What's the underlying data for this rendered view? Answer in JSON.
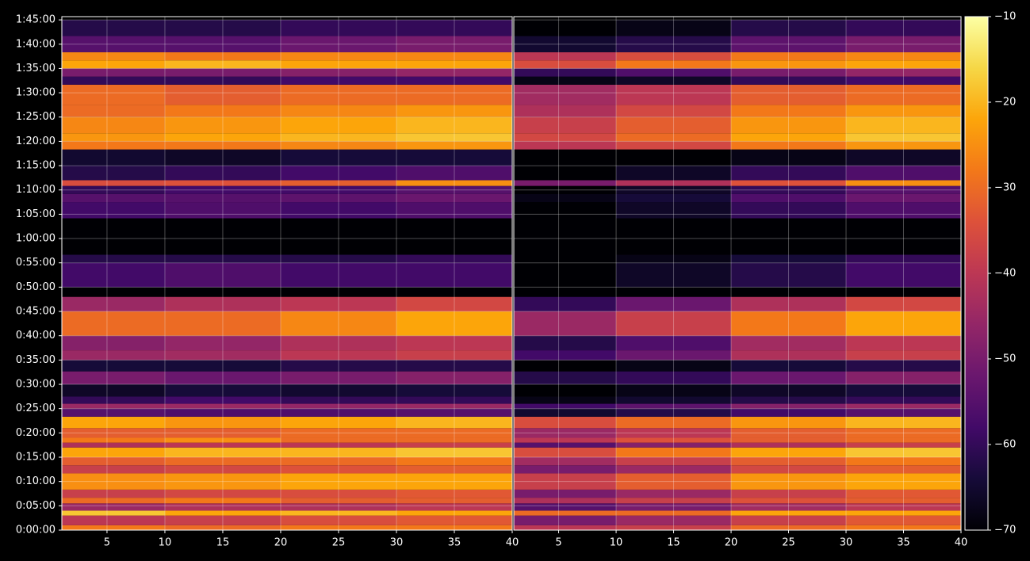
{
  "chart_data": {
    "type": "heatmap",
    "colormap": "inferno",
    "grid": true,
    "ylim": [
      0,
      6340
    ],
    "yticks": [
      {
        "value": 0,
        "label": "0:00:00"
      },
      {
        "value": 300,
        "label": "0:05:00"
      },
      {
        "value": 600,
        "label": "0:10:00"
      },
      {
        "value": 900,
        "label": "0:15:00"
      },
      {
        "value": 1200,
        "label": "0:20:00"
      },
      {
        "value": 1500,
        "label": "0:25:00"
      },
      {
        "value": 1800,
        "label": "0:30:00"
      },
      {
        "value": 2100,
        "label": "0:35:00"
      },
      {
        "value": 2400,
        "label": "0:40:00"
      },
      {
        "value": 2700,
        "label": "0:45:00"
      },
      {
        "value": 3000,
        "label": "0:50:00"
      },
      {
        "value": 3300,
        "label": "0:55:00"
      },
      {
        "value": 3600,
        "label": "1:00:00"
      },
      {
        "value": 3900,
        "label": "1:05:00"
      },
      {
        "value": 4200,
        "label": "1:10:00"
      },
      {
        "value": 4500,
        "label": "1:15:00"
      },
      {
        "value": 4800,
        "label": "1:20:00"
      },
      {
        "value": 5100,
        "label": "1:25:00"
      },
      {
        "value": 5400,
        "label": "1:30:00"
      },
      {
        "value": 5700,
        "label": "1:35:00"
      },
      {
        "value": 6000,
        "label": "1:40:00"
      },
      {
        "value": 6300,
        "label": "1:45:00"
      }
    ],
    "y_edges": [
      0,
      60,
      180,
      240,
      330,
      400,
      500,
      700,
      800,
      900,
      1020,
      1080,
      1140,
      1260,
      1400,
      1500,
      1560,
      1650,
      1800,
      1960,
      2100,
      2220,
      2400,
      2700,
      2880,
      3000,
      3300,
      3400,
      3850,
      4050,
      4150,
      4250,
      4320,
      4500,
      4700,
      4800,
      4900,
      5100,
      5250,
      5500,
      5600,
      5700,
      5800,
      5900,
      6100,
      6300
    ],
    "colorbar": {
      "lim": [
        -70,
        -10
      ],
      "ticks": [
        {
          "value": -10,
          "label": "−10"
        },
        {
          "value": -20,
          "label": "−20"
        },
        {
          "value": -30,
          "label": "−30"
        },
        {
          "value": -40,
          "label": "−40"
        },
        {
          "value": -50,
          "label": "−50"
        },
        {
          "value": -60,
          "label": "−60"
        },
        {
          "value": -70,
          "label": "−70"
        }
      ]
    },
    "panels": [
      {
        "xlim": [
          1.1,
          40
        ],
        "xticks": [
          5,
          10,
          15,
          20,
          25,
          30,
          35,
          40
        ],
        "x_edges": [
          1.1,
          10,
          20,
          30,
          40
        ],
        "z": [
          [
            -28,
            -30,
            -28,
            -28
          ],
          [
            -40,
            -38,
            -35,
            -33
          ],
          [
            -18,
            -22,
            -20,
            -22
          ],
          [
            -45,
            -42,
            -42,
            -40
          ],
          [
            -30,
            -28,
            -32,
            -32
          ],
          [
            -38,
            -36,
            -35,
            -33
          ],
          [
            -25,
            -24,
            -22,
            -22
          ],
          [
            -38,
            -36,
            -34,
            -32
          ],
          [
            -32,
            -30,
            -30,
            -28
          ],
          [
            -22,
            -20,
            -20,
            -18
          ],
          [
            -42,
            -40,
            -40,
            -38
          ],
          [
            -28,
            -25,
            -30,
            -30
          ],
          [
            -32,
            -32,
            -30,
            -30
          ],
          [
            -22,
            -24,
            -22,
            -20
          ],
          [
            -55,
            -56,
            -56,
            -55
          ],
          [
            -45,
            -45,
            -46,
            -45
          ],
          [
            -60,
            -58,
            -60,
            -60
          ],
          [
            -66,
            -64,
            -65,
            -64
          ],
          [
            -50,
            -52,
            -50,
            -48
          ],
          [
            -64,
            -64,
            -62,
            -62
          ],
          [
            -45,
            -44,
            -40,
            -38
          ],
          [
            -48,
            -46,
            -42,
            -40
          ],
          [
            -30,
            -30,
            -26,
            -22
          ],
          [
            -45,
            -42,
            -40,
            -36
          ],
          [
            -70,
            -70,
            -70,
            -70
          ],
          [
            -58,
            -56,
            -58,
            -58
          ],
          [
            -62,
            -62,
            -62,
            -60
          ],
          [
            -70,
            -70,
            -70,
            -70
          ],
          [
            -58,
            -56,
            -58,
            -56
          ],
          [
            -55,
            -55,
            -54,
            -52
          ],
          [
            -60,
            -58,
            -58,
            -55
          ],
          [
            -35,
            -34,
            -32,
            -25
          ],
          [
            -62,
            -60,
            -58,
            -56
          ],
          [
            -65,
            -66,
            -64,
            -64
          ],
          [
            -28,
            -28,
            -26,
            -24
          ],
          [
            -24,
            -22,
            -20,
            -18
          ],
          [
            -26,
            -24,
            -22,
            -20
          ],
          [
            -30,
            -28,
            -26,
            -24
          ],
          [
            -30,
            -32,
            -30,
            -30
          ],
          [
            -60,
            -60,
            -58,
            -58
          ],
          [
            -50,
            -50,
            -48,
            -46
          ],
          [
            -22,
            -20,
            -22,
            -22
          ],
          [
            -26,
            -28,
            -26,
            -26
          ],
          [
            -55,
            -55,
            -52,
            -50
          ],
          [
            -62,
            -62,
            -60,
            -60
          ]
        ]
      },
      {
        "xlim": [
          1.1,
          40
        ],
        "xticks": [
          5,
          10,
          15,
          20,
          25,
          30,
          35,
          40
        ],
        "x_edges": [
          1.1,
          10,
          20,
          30,
          40
        ],
        "z": [
          [
            -40,
            -38,
            -30,
            -28
          ],
          [
            -50,
            -45,
            -38,
            -33
          ],
          [
            -30,
            -30,
            -22,
            -22
          ],
          [
            -55,
            -50,
            -44,
            -40
          ],
          [
            -42,
            -38,
            -34,
            -32
          ],
          [
            -50,
            -45,
            -38,
            -33
          ],
          [
            -38,
            -32,
            -24,
            -22
          ],
          [
            -50,
            -45,
            -36,
            -32
          ],
          [
            -44,
            -38,
            -32,
            -28
          ],
          [
            -35,
            -28,
            -22,
            -18
          ],
          [
            -55,
            -48,
            -42,
            -38
          ],
          [
            -40,
            -34,
            -32,
            -30
          ],
          [
            -45,
            -40,
            -32,
            -30
          ],
          [
            -35,
            -30,
            -24,
            -20
          ],
          [
            -65,
            -62,
            -58,
            -55
          ],
          [
            -58,
            -54,
            -48,
            -45
          ],
          [
            -68,
            -65,
            -62,
            -60
          ],
          [
            -70,
            -68,
            -66,
            -64
          ],
          [
            -62,
            -60,
            -52,
            -48
          ],
          [
            -70,
            -68,
            -64,
            -62
          ],
          [
            -58,
            -52,
            -42,
            -38
          ],
          [
            -62,
            -56,
            -44,
            -40
          ],
          [
            -45,
            -38,
            -28,
            -22
          ],
          [
            -60,
            -52,
            -42,
            -36
          ],
          [
            -70,
            -70,
            -70,
            -70
          ],
          [
            -70,
            -66,
            -62,
            -58
          ],
          [
            -70,
            -68,
            -64,
            -60
          ],
          [
            -70,
            -70,
            -70,
            -70
          ],
          [
            -70,
            -66,
            -60,
            -56
          ],
          [
            -68,
            -64,
            -56,
            -52
          ],
          [
            -70,
            -66,
            -60,
            -55
          ],
          [
            -50,
            -42,
            -34,
            -25
          ],
          [
            -70,
            -66,
            -60,
            -56
          ],
          [
            -70,
            -70,
            -68,
            -66
          ],
          [
            -40,
            -36,
            -28,
            -24
          ],
          [
            -36,
            -30,
            -22,
            -18
          ],
          [
            -38,
            -32,
            -24,
            -20
          ],
          [
            -42,
            -36,
            -28,
            -24
          ],
          [
            -44,
            -40,
            -32,
            -30
          ],
          [
            -68,
            -66,
            -60,
            -58
          ],
          [
            -60,
            -56,
            -50,
            -46
          ],
          [
            -35,
            -28,
            -24,
            -22
          ],
          [
            -40,
            -35,
            -28,
            -26
          ],
          [
            -65,
            -62,
            -54,
            -50
          ],
          [
            -70,
            -68,
            -62,
            -60
          ]
        ]
      }
    ]
  }
}
